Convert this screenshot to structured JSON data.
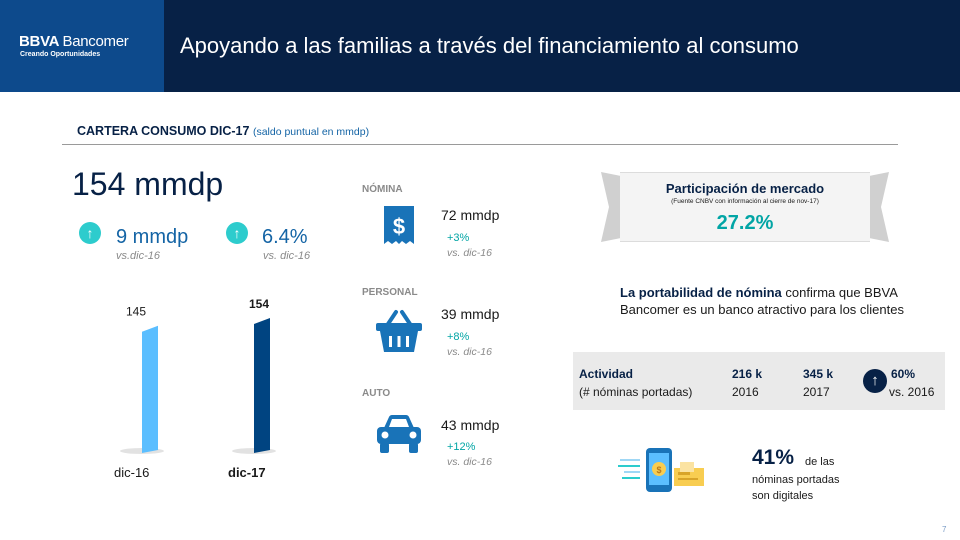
{
  "header": {
    "logo_bold": "BBVA",
    "logo_light": "Bancomer",
    "logo_sub": "Creando Oportunidades",
    "title": "Apoyando a las familias a través del financiamiento al consumo"
  },
  "section": {
    "title": "CARTERA CONSUMO DIC-17",
    "subtitle": "(saldo puntual en mmdp)"
  },
  "summary": {
    "total": "154 mmdp",
    "growth_abs": "9 mmdp",
    "growth_abs_sub": "vs.dic-16",
    "growth_pct": "6.4%",
    "growth_pct_sub": "vs. dic-16",
    "up_glyph": "↑"
  },
  "chart_data": {
    "type": "bar",
    "categories": [
      "dic-16",
      "dic-17"
    ],
    "values": [
      145,
      154
    ],
    "value_labels": [
      "145",
      "154"
    ],
    "colors": [
      "#5bbeff",
      "#004481"
    ]
  },
  "products": [
    {
      "category": "NÓMINA",
      "icon": "receipt-dollar-icon",
      "value": "72 mmdp",
      "growth": "+3%",
      "sub": "vs. dic-16"
    },
    {
      "category": "PERSONAL",
      "icon": "basket-icon",
      "value": "39 mmdp",
      "growth": "+8%",
      "sub": "vs. dic-16"
    },
    {
      "category": "AUTO",
      "icon": "car-icon",
      "value": "43 mmdp",
      "growth": "+12%",
      "sub": "vs. dic-16"
    }
  ],
  "market": {
    "title": "Participación de mercado",
    "source": "(Fuente CNBV con información al cierre de nov-17)",
    "value": "27.2%"
  },
  "portability": {
    "bold": "La portabilidad de nómina",
    "rest": " confirma que BBVA Bancomer es un banco atractivo para los clientes"
  },
  "activity": {
    "label": "Actividad",
    "label_sub": "(# nóminas portadas)",
    "v2016": "216 k",
    "y2016": "2016",
    "v2017": "345 k",
    "y2017": "2017",
    "growth": "60%",
    "growth_sub": "vs. 2016",
    "up_glyph": "↑"
  },
  "digital": {
    "pct": "41%",
    "line1": "de las",
    "line2": "nóminas portadas",
    "line3": "son digitales",
    "icon": "mobile-transfer-icon"
  },
  "page_number": "7"
}
